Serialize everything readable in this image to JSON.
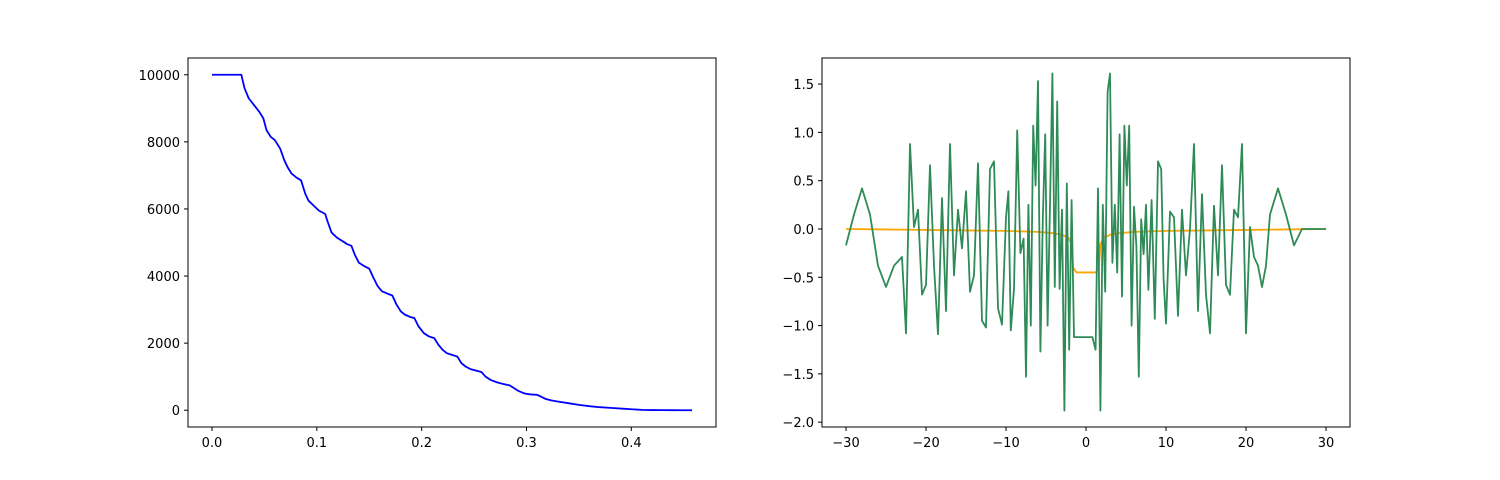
{
  "chart_data": [
    {
      "type": "line",
      "title": "",
      "xlabel": "",
      "ylabel": "",
      "xlim": [
        -0.0229,
        0.4808
      ],
      "ylim": [
        -500,
        10500
      ],
      "x_ticks": [
        0.0,
        0.1,
        0.2,
        0.3,
        0.4
      ],
      "x_tick_labels": [
        "0.0",
        "0.1",
        "0.2",
        "0.3",
        "0.4"
      ],
      "y_ticks": [
        0,
        2000,
        4000,
        6000,
        8000,
        10000
      ],
      "y_tick_labels": [
        "0",
        "2000",
        "4000",
        "6000",
        "8000",
        "10000"
      ],
      "grid": false,
      "series": [
        {
          "color": "#0000ff",
          "x": [
            0.0,
            0.01,
            0.02,
            0.028,
            0.031,
            0.035,
            0.04,
            0.045,
            0.049,
            0.052,
            0.056,
            0.06,
            0.065,
            0.069,
            0.072,
            0.076,
            0.08,
            0.085,
            0.089,
            0.092,
            0.097,
            0.102,
            0.108,
            0.11,
            0.114,
            0.119,
            0.124,
            0.129,
            0.133,
            0.136,
            0.14,
            0.145,
            0.15,
            0.154,
            0.158,
            0.162,
            0.167,
            0.172,
            0.176,
            0.18,
            0.184,
            0.189,
            0.193,
            0.197,
            0.202,
            0.207,
            0.212,
            0.216,
            0.22,
            0.224,
            0.229,
            0.234,
            0.238,
            0.242,
            0.247,
            0.252,
            0.257,
            0.261,
            0.266,
            0.272,
            0.278,
            0.284,
            0.287,
            0.292,
            0.298,
            0.304,
            0.31,
            0.313,
            0.318,
            0.324,
            0.332,
            0.34,
            0.35,
            0.36,
            0.37,
            0.38,
            0.39,
            0.4,
            0.41,
            0.42,
            0.43,
            0.44,
            0.45,
            0.458
          ],
          "y": [
            10000,
            10000,
            10000,
            10000,
            9600,
            9300,
            9100,
            8900,
            8700,
            8350,
            8150,
            8050,
            7800,
            7450,
            7250,
            7050,
            6950,
            6850,
            6450,
            6250,
            6100,
            5950,
            5850,
            5650,
            5300,
            5150,
            5050,
            4950,
            4900,
            4650,
            4400,
            4300,
            4220,
            3950,
            3700,
            3550,
            3480,
            3420,
            3150,
            2950,
            2850,
            2780,
            2750,
            2500,
            2300,
            2200,
            2150,
            1950,
            1800,
            1700,
            1650,
            1600,
            1400,
            1300,
            1220,
            1180,
            1140,
            1000,
            900,
            830,
            780,
            740,
            680,
            580,
            500,
            470,
            460,
            420,
            340,
            290,
            250,
            210,
            160,
            120,
            90,
            70,
            50,
            30,
            10,
            5,
            2,
            1,
            0,
            0
          ]
        }
      ]
    },
    {
      "type": "line",
      "title": "",
      "xlabel": "",
      "ylabel": "",
      "xlim": [
        -33.0,
        33.0
      ],
      "ylim": [
        -2.05,
        1.77
      ],
      "x_ticks": [
        -30,
        -20,
        -10,
        0,
        10,
        20,
        30
      ],
      "x_tick_labels": [
        "−30",
        "−20",
        "−10",
        "0",
        "10",
        "20",
        "30"
      ],
      "y_ticks": [
        -2.0,
        -1.5,
        -1.0,
        -0.5,
        0.0,
        0.5,
        1.0,
        1.5
      ],
      "y_tick_labels": [
        "−2.0",
        "−1.5",
        "−1.0",
        "−0.5",
        "0.0",
        "0.5",
        "1.0",
        "1.5"
      ],
      "grid": false,
      "series": [
        {
          "color": "#ffa500",
          "x": [
            -30.0,
            -25.0,
            -20.0,
            -15.0,
            -10.0,
            -6.0,
            -4.0,
            -3.0,
            -2.2,
            -1.8,
            -1.6,
            -1.2,
            -0.5,
            0.0,
            0.5,
            1.2,
            1.6,
            1.8,
            2.2,
            3.0,
            4.0,
            6.0,
            10.0,
            15.0,
            20.0,
            25.0,
            30.0
          ],
          "y": [
            0.0,
            -0.005,
            -0.01,
            -0.015,
            -0.02,
            -0.03,
            -0.045,
            -0.06,
            -0.09,
            -0.16,
            -0.4,
            -0.45,
            -0.45,
            -0.45,
            -0.45,
            -0.45,
            -0.4,
            -0.16,
            -0.09,
            -0.06,
            -0.045,
            -0.03,
            -0.02,
            -0.015,
            -0.01,
            -0.005,
            0.0
          ]
        },
        {
          "color": "#2e8b57",
          "x": [
            -30.0,
            -29.0,
            -28.0,
            -27.0,
            -26.0,
            -25.0,
            -24.0,
            -23.0,
            -22.5,
            -22.0,
            -21.5,
            -21.0,
            -20.5,
            -20.0,
            -19.5,
            -19.0,
            -18.5,
            -18.0,
            -17.5,
            -17.0,
            -16.5,
            -16.0,
            -15.5,
            -15.0,
            -14.5,
            -14.0,
            -13.5,
            -13.0,
            -12.5,
            -12.0,
            -11.5,
            -11.0,
            -10.5,
            -10.0,
            -9.7,
            -9.4,
            -9.0,
            -8.6,
            -8.2,
            -7.8,
            -7.5,
            -7.2,
            -6.9,
            -6.6,
            -6.3,
            -6.0,
            -5.7,
            -5.4,
            -5.1,
            -4.8,
            -4.5,
            -4.2,
            -3.9,
            -3.6,
            -3.3,
            -3.0,
            -2.7,
            -2.4,
            -2.1,
            -1.8,
            -1.5,
            -1.2,
            -0.8,
            0.0,
            0.8,
            1.2,
            1.5,
            1.8,
            2.1,
            2.4,
            2.7,
            3.0,
            3.3,
            3.6,
            3.9,
            4.2,
            4.5,
            4.8,
            5.1,
            5.4,
            5.7,
            6.0,
            6.3,
            6.6,
            6.9,
            7.2,
            7.5,
            7.8,
            8.2,
            8.6,
            9.0,
            9.4,
            9.7,
            10.0,
            10.5,
            11.0,
            11.5,
            12.0,
            12.5,
            13.0,
            13.5,
            14.0,
            14.5,
            15.0,
            15.5,
            16.0,
            16.5,
            17.0,
            17.5,
            18.0,
            18.5,
            19.0,
            19.5,
            20.0,
            20.5,
            21.0,
            21.5,
            22.0,
            22.5,
            23.0,
            24.0,
            25.0,
            26.0,
            27.0,
            28.0,
            29.0,
            30.0
          ],
          "y": [
            -0.17,
            0.15,
            0.42,
            0.15,
            -0.38,
            -0.6,
            -0.38,
            -0.29,
            -1.08,
            0.88,
            0.02,
            0.2,
            -0.68,
            -0.58,
            0.66,
            -0.38,
            -1.09,
            0.32,
            -0.85,
            0.88,
            -0.48,
            0.2,
            -0.2,
            0.39,
            -0.65,
            -0.48,
            0.68,
            -0.95,
            -1.02,
            0.62,
            0.7,
            -0.82,
            -0.99,
            0.12,
            0.39,
            -1.05,
            -0.62,
            1.02,
            -0.25,
            -0.1,
            -1.53,
            0.25,
            -1.0,
            1.07,
            0.45,
            1.53,
            -1.27,
            0.1,
            0.98,
            -1.0,
            0.25,
            1.61,
            -0.6,
            1.32,
            -0.62,
            0.2,
            -1.88,
            0.47,
            -1.25,
            0.3,
            -1.12,
            -1.12,
            -1.12,
            -1.12,
            -1.12,
            -1.25,
            0.42,
            -1.88,
            0.25,
            -0.65,
            1.42,
            1.61,
            -0.35,
            0.25,
            -0.45,
            0.98,
            -0.7,
            1.07,
            0.45,
            1.07,
            -1.0,
            0.23,
            -0.18,
            -1.53,
            0.1,
            -0.26,
            0.25,
            -0.63,
            0.3,
            -0.93,
            0.7,
            0.62,
            -0.52,
            -0.98,
            0.18,
            0.12,
            -0.9,
            0.2,
            -0.48,
            0.0,
            0.88,
            -0.85,
            0.36,
            -0.68,
            -1.08,
            0.24,
            -0.48,
            0.66,
            -0.58,
            -0.68,
            0.2,
            0.12,
            0.88,
            -1.08,
            0.02,
            -0.29,
            -0.38,
            -0.6,
            -0.38,
            0.15,
            0.42,
            0.15,
            -0.17,
            0.0,
            0.0,
            0.0,
            0.0
          ]
        }
      ]
    }
  ]
}
